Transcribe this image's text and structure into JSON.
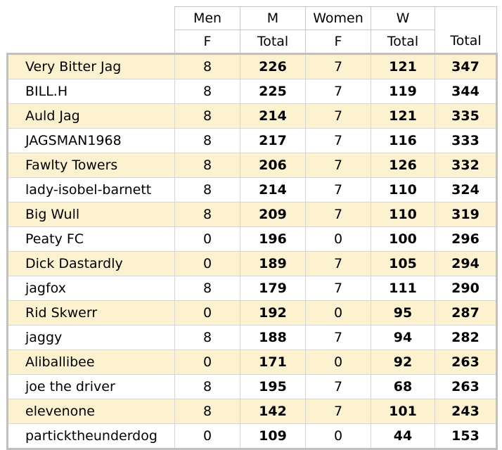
{
  "header": {
    "men_f_top": "Men",
    "men_f_bottom": "F",
    "m_total_top": "M",
    "m_total_bottom": "Total",
    "women_f_top": "Women",
    "women_f_bottom": "F",
    "w_total_top": "W",
    "w_total_bottom": "Total",
    "total_bottom": "Total"
  },
  "rows": [
    {
      "name": "Very Bitter Jag",
      "men_f": "8",
      "m_total": "226",
      "women_f": "7",
      "w_total": "121",
      "total": "347"
    },
    {
      "name": "BILL.H",
      "men_f": "8",
      "m_total": "225",
      "women_f": "7",
      "w_total": "119",
      "total": "344"
    },
    {
      "name": "Auld Jag",
      "men_f": "8",
      "m_total": "214",
      "women_f": "7",
      "w_total": "121",
      "total": "335"
    },
    {
      "name": "JAGSMAN1968",
      "men_f": "8",
      "m_total": "217",
      "women_f": "7",
      "w_total": "116",
      "total": "333"
    },
    {
      "name": "Fawlty Towers",
      "men_f": "8",
      "m_total": "206",
      "women_f": "7",
      "w_total": "126",
      "total": "332"
    },
    {
      "name": "lady-isobel-barnett",
      "men_f": "8",
      "m_total": "214",
      "women_f": "7",
      "w_total": "110",
      "total": "324"
    },
    {
      "name": "Big Wull",
      "men_f": "8",
      "m_total": "209",
      "women_f": "7",
      "w_total": "110",
      "total": "319"
    },
    {
      "name": "Peaty FC",
      "men_f": "0",
      "m_total": "196",
      "women_f": "0",
      "w_total": "100",
      "total": "296"
    },
    {
      "name": "Dick Dastardly",
      "men_f": "0",
      "m_total": "189",
      "women_f": "7",
      "w_total": "105",
      "total": "294"
    },
    {
      "name": "jagfox",
      "men_f": "8",
      "m_total": "179",
      "women_f": "7",
      "w_total": "111",
      "total": "290"
    },
    {
      "name": "Rid Skwerr",
      "men_f": "0",
      "m_total": "192",
      "women_f": "0",
      "w_total": "95",
      "total": "287"
    },
    {
      "name": "jaggy",
      "men_f": "8",
      "m_total": "188",
      "women_f": "7",
      "w_total": "94",
      "total": "282"
    },
    {
      "name": "Aliballibee",
      "men_f": "0",
      "m_total": "171",
      "women_f": "0",
      "w_total": "92",
      "total": "263"
    },
    {
      "name": "joe the driver",
      "men_f": "8",
      "m_total": "195",
      "women_f": "7",
      "w_total": "68",
      "total": "263"
    },
    {
      "name": "elevenone",
      "men_f": "8",
      "m_total": "142",
      "women_f": "7",
      "w_total": "101",
      "total": "243"
    },
    {
      "name": "particktheunderdog",
      "men_f": "0",
      "m_total": "109",
      "women_f": "0",
      "w_total": "44",
      "total": "153"
    }
  ],
  "colors": {
    "alt_row": "#fdf2d0",
    "border": "#c0c0c0"
  }
}
